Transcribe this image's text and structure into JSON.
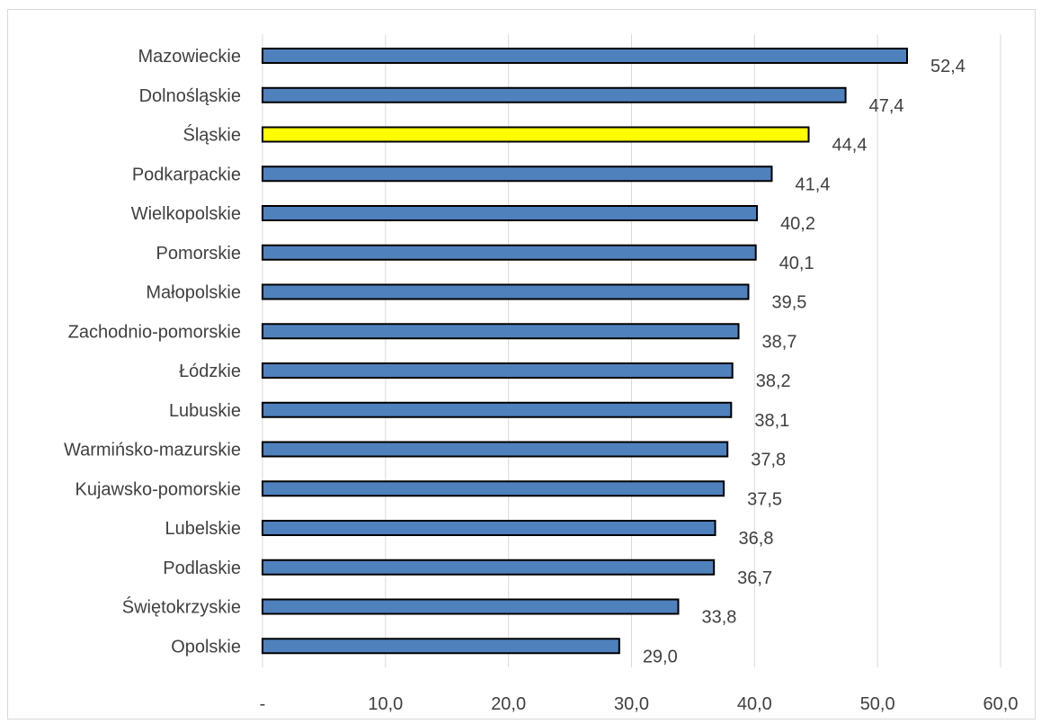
{
  "chart_data": {
    "type": "bar",
    "orientation": "horizontal",
    "categories": [
      "Mazowieckie",
      "Dolnośląskie",
      "Śląskie",
      "Podkarpackie",
      "Wielkopolskie",
      "Pomorskie",
      "Małopolskie",
      "Zachodnio-pomorskie",
      "Łódzkie",
      "Lubuskie",
      "Warmińsko-mazurskie",
      "Kujawsko-pomorskie",
      "Lubelskie",
      "Podlaskie",
      "Świętokrzyskie",
      "Opolskie"
    ],
    "values": [
      52.4,
      47.4,
      44.4,
      41.4,
      40.2,
      40.1,
      39.5,
      38.7,
      38.2,
      38.1,
      37.8,
      37.5,
      36.8,
      36.7,
      33.8,
      29.0
    ],
    "value_labels": [
      "52,4",
      "47,4",
      "44,4",
      "41,4",
      "40,2",
      "40,1",
      "39,5",
      "38,7",
      "38,2",
      "38,1",
      "37,8",
      "37,5",
      "36,8",
      "36,7",
      "33,8",
      "29,0"
    ],
    "highlight_category": "Śląskie",
    "xlim": [
      0,
      60
    ],
    "x_ticks": [
      0,
      10,
      20,
      30,
      40,
      50,
      60
    ],
    "x_tick_labels": [
      "-",
      "10,0",
      "20,0",
      "30,0",
      "40,0",
      "50,0",
      "60,0"
    ],
    "title": "",
    "xlabel": "",
    "ylabel": "",
    "grid": "vertical",
    "legend": "none",
    "colors": {
      "bar": "#4f81bd",
      "highlight": "#ffff00",
      "outline": "#000000",
      "grid": "#d9d9d9"
    }
  }
}
